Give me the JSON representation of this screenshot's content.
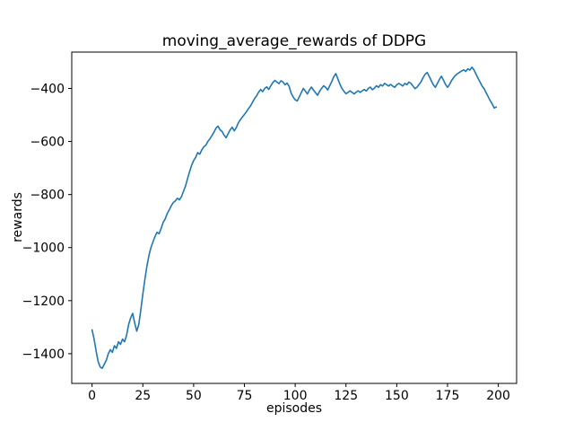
{
  "chart_data": {
    "type": "line",
    "title": "moving_average_rewards of DDPG",
    "xlabel": "episodes",
    "ylabel": "rewards",
    "x_ticks": [
      0,
      25,
      50,
      75,
      100,
      125,
      150,
      175,
      200
    ],
    "y_ticks": [
      -400,
      -600,
      -800,
      -1000,
      -1200,
      -1400
    ],
    "xlim": [
      -10,
      209
    ],
    "ylim": [
      -1512,
      -263
    ],
    "grid": false,
    "legend_position": "none",
    "line_color": "#1f77b4",
    "background_color": "#ffffff",
    "series": [
      {
        "name": "moving_average_rewards",
        "x_start": 0,
        "x_step": 1,
        "values": [
          -1310,
          -1345,
          -1390,
          -1430,
          -1450,
          -1455,
          -1440,
          -1425,
          -1400,
          -1385,
          -1395,
          -1370,
          -1380,
          -1355,
          -1365,
          -1345,
          -1355,
          -1330,
          -1290,
          -1265,
          -1248,
          -1285,
          -1315,
          -1290,
          -1235,
          -1175,
          -1120,
          -1070,
          -1030,
          -1000,
          -978,
          -958,
          -942,
          -948,
          -928,
          -905,
          -892,
          -872,
          -858,
          -842,
          -830,
          -824,
          -814,
          -820,
          -808,
          -788,
          -768,
          -740,
          -714,
          -690,
          -672,
          -660,
          -642,
          -648,
          -632,
          -620,
          -614,
          -600,
          -590,
          -578,
          -565,
          -550,
          -542,
          -556,
          -562,
          -576,
          -586,
          -570,
          -556,
          -546,
          -560,
          -548,
          -530,
          -518,
          -508,
          -498,
          -488,
          -476,
          -466,
          -452,
          -438,
          -428,
          -414,
          -404,
          -412,
          -400,
          -394,
          -404,
          -390,
          -378,
          -370,
          -376,
          -382,
          -371,
          -376,
          -386,
          -380,
          -392,
          -418,
          -432,
          -443,
          -447,
          -432,
          -416,
          -400,
          -410,
          -421,
          -406,
          -395,
          -406,
          -416,
          -426,
          -411,
          -400,
          -390,
          -396,
          -406,
          -390,
          -374,
          -356,
          -344,
          -364,
          -384,
          -400,
          -411,
          -420,
          -415,
          -409,
          -415,
          -421,
          -414,
          -409,
          -415,
          -409,
          -404,
          -410,
          -400,
          -395,
          -405,
          -399,
          -390,
          -396,
          -386,
          -391,
          -381,
          -386,
          -391,
          -385,
          -391,
          -396,
          -386,
          -381,
          -386,
          -391,
          -381,
          -386,
          -376,
          -381,
          -391,
          -401,
          -395,
          -385,
          -374,
          -359,
          -346,
          -340,
          -355,
          -371,
          -386,
          -396,
          -381,
          -366,
          -354,
          -369,
          -385,
          -396,
          -385,
          -370,
          -359,
          -350,
          -344,
          -339,
          -334,
          -330,
          -336,
          -326,
          -331,
          -320,
          -330,
          -346,
          -361,
          -376,
          -391,
          -401,
          -416,
          -431,
          -446,
          -459,
          -474,
          -470
        ]
      }
    ]
  }
}
